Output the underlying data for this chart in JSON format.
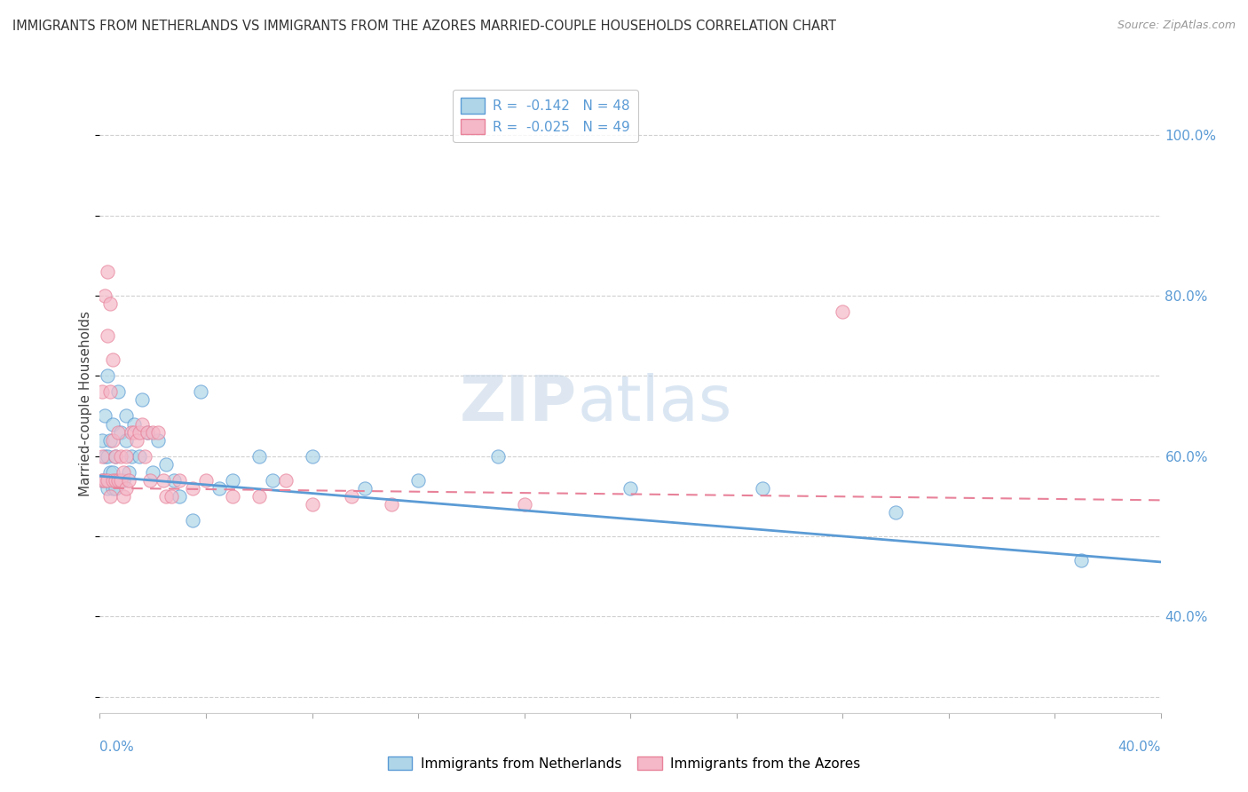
{
  "title": "IMMIGRANTS FROM NETHERLANDS VS IMMIGRANTS FROM THE AZORES MARRIED-COUPLE HOUSEHOLDS CORRELATION CHART",
  "source": "Source: ZipAtlas.com",
  "ylabel": "Married-couple Households",
  "color_blue": "#AED6E8",
  "color_pink": "#F4B8C8",
  "color_blue_line": "#5B9BD5",
  "color_pink_line": "#E8829A",
  "xlim": [
    0.0,
    0.4
  ],
  "ylim": [
    0.28,
    1.05
  ],
  "blue_scatter_x": [
    0.001,
    0.001,
    0.002,
    0.002,
    0.003,
    0.003,
    0.003,
    0.004,
    0.004,
    0.005,
    0.005,
    0.005,
    0.006,
    0.006,
    0.007,
    0.008,
    0.009,
    0.01,
    0.01,
    0.011,
    0.012,
    0.013,
    0.015,
    0.016,
    0.018,
    0.02,
    0.022,
    0.025,
    0.028,
    0.03,
    0.035,
    0.038,
    0.045,
    0.05,
    0.06,
    0.065,
    0.08,
    0.1,
    0.12,
    0.15,
    0.2,
    0.25,
    0.3,
    0.37
  ],
  "blue_scatter_y": [
    0.57,
    0.62,
    0.6,
    0.65,
    0.56,
    0.6,
    0.7,
    0.58,
    0.62,
    0.56,
    0.64,
    0.58,
    0.6,
    0.56,
    0.68,
    0.63,
    0.57,
    0.62,
    0.65,
    0.58,
    0.6,
    0.64,
    0.6,
    0.67,
    0.63,
    0.58,
    0.62,
    0.59,
    0.57,
    0.55,
    0.52,
    0.68,
    0.56,
    0.57,
    0.6,
    0.57,
    0.6,
    0.56,
    0.57,
    0.6,
    0.56,
    0.56,
    0.53,
    0.47
  ],
  "pink_scatter_x": [
    0.001,
    0.001,
    0.001,
    0.002,
    0.002,
    0.003,
    0.003,
    0.003,
    0.004,
    0.004,
    0.004,
    0.005,
    0.005,
    0.005,
    0.006,
    0.006,
    0.007,
    0.007,
    0.008,
    0.008,
    0.009,
    0.009,
    0.01,
    0.01,
    0.011,
    0.012,
    0.013,
    0.014,
    0.015,
    0.016,
    0.017,
    0.018,
    0.019,
    0.02,
    0.022,
    0.024,
    0.025,
    0.027,
    0.03,
    0.035,
    0.04,
    0.05,
    0.06,
    0.07,
    0.08,
    0.095,
    0.11,
    0.16,
    0.28
  ],
  "pink_scatter_y": [
    0.57,
    0.6,
    0.68,
    0.57,
    0.8,
    0.57,
    0.75,
    0.83,
    0.55,
    0.68,
    0.79,
    0.57,
    0.62,
    0.72,
    0.57,
    0.6,
    0.57,
    0.63,
    0.57,
    0.6,
    0.55,
    0.58,
    0.56,
    0.6,
    0.57,
    0.63,
    0.63,
    0.62,
    0.63,
    0.64,
    0.6,
    0.63,
    0.57,
    0.63,
    0.63,
    0.57,
    0.55,
    0.55,
    0.57,
    0.56,
    0.57,
    0.55,
    0.55,
    0.57,
    0.54,
    0.55,
    0.54,
    0.54,
    0.78
  ],
  "blue_line_x": [
    0.0,
    0.4
  ],
  "blue_line_y": [
    0.575,
    0.468
  ],
  "pink_line_x": [
    0.005,
    0.4
  ],
  "pink_line_y": [
    0.56,
    0.545
  ],
  "yticks": [
    0.4,
    0.6,
    0.8,
    1.0
  ],
  "ytick_labels": [
    "40.0%",
    "60.0%",
    "80.0%",
    "100.0%"
  ]
}
